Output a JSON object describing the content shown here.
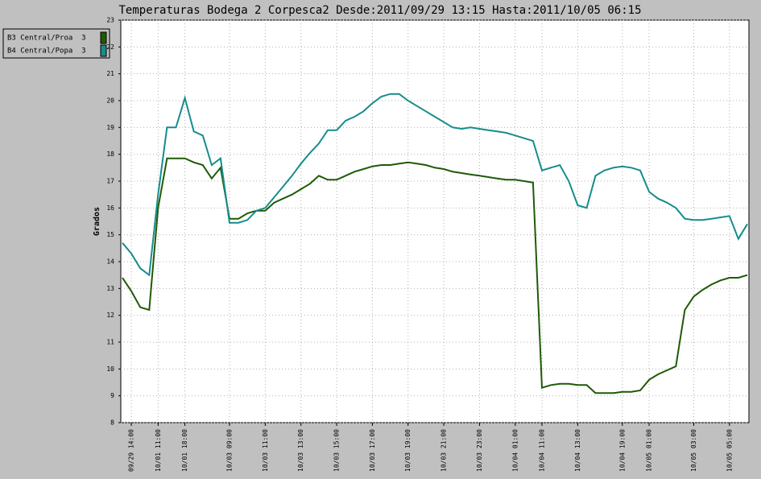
{
  "chart_data": {
    "type": "line",
    "title": "Temperaturas Bodega 2 Corpesca2 Desde:2011/09/29 13:15 Hasta:2011/10/05 06:15",
    "y_label": "Grados",
    "categories": [
      null,
      "09/29 14:00",
      null,
      null,
      "10/01 11:00",
      null,
      null,
      "10/01 18:00",
      null,
      null,
      null,
      null,
      "10/03 09:00",
      null,
      null,
      null,
      "10/03 11:00",
      null,
      null,
      null,
      "10/03 13:00",
      null,
      null,
      null,
      "10/03 15:00",
      null,
      null,
      null,
      "10/03 17:00",
      null,
      null,
      null,
      "10/03 19:00",
      null,
      null,
      null,
      "10/03 21:00",
      null,
      null,
      null,
      "10/03 23:00",
      null,
      null,
      null,
      "10/04 01:00",
      null,
      null,
      "10/04 11:00",
      null,
      null,
      null,
      "10/04 13:00",
      null,
      null,
      null,
      null,
      "10/04 19:00",
      null,
      null,
      "10/05 01:00",
      null,
      null,
      null,
      null,
      "10/05 03:00",
      null,
      null,
      null,
      "10/05 05:00",
      null,
      null
    ],
    "series": [
      {
        "name": "B3 Central/Proa  3",
        "color": "#1f5a05",
        "values": [
          13.4,
          12.9,
          12.3,
          12.2,
          16.0,
          17.85,
          17.85,
          17.85,
          17.7,
          17.6,
          17.1,
          17.5,
          15.6,
          15.6,
          15.8,
          15.9,
          15.9,
          16.2,
          16.35,
          16.5,
          16.7,
          16.9,
          17.2,
          17.05,
          17.05,
          17.2,
          17.35,
          17.45,
          17.55,
          17.6,
          17.6,
          17.65,
          17.7,
          17.65,
          17.6,
          17.5,
          17.45,
          17.35,
          17.3,
          17.25,
          17.2,
          17.15,
          17.1,
          17.05,
          17.05,
          17.0,
          16.95,
          9.3,
          9.4,
          9.45,
          9.45,
          9.4,
          9.4,
          9.1,
          9.1,
          9.1,
          9.15,
          9.15,
          9.2,
          9.6,
          9.8,
          9.95,
          10.1,
          12.2,
          12.7,
          12.95,
          13.15,
          13.3,
          13.4,
          13.4,
          13.5
        ]
      },
      {
        "name": "B4 Central/Popa  3",
        "color": "#168c8c",
        "values": [
          14.7,
          14.3,
          13.75,
          13.5,
          16.5,
          19.0,
          19.0,
          20.1,
          18.85,
          18.7,
          17.6,
          17.85,
          15.45,
          15.45,
          15.55,
          15.9,
          16.0,
          16.4,
          16.8,
          17.2,
          17.65,
          18.05,
          18.4,
          18.9,
          18.9,
          19.25,
          19.4,
          19.6,
          19.9,
          20.15,
          20.25,
          20.25,
          20.0,
          19.8,
          19.6,
          19.4,
          19.2,
          19.0,
          18.95,
          19.0,
          18.95,
          18.9,
          18.85,
          18.8,
          18.7,
          18.6,
          18.5,
          17.4,
          17.5,
          17.6,
          17.0,
          16.1,
          16.0,
          17.2,
          17.4,
          17.5,
          17.55,
          17.5,
          17.4,
          16.6,
          16.35,
          16.2,
          16.0,
          15.6,
          15.55,
          15.55,
          15.6,
          15.65,
          15.7,
          14.85,
          15.4
        ]
      }
    ],
    "ylim": [
      8,
      23
    ],
    "yticks": [
      8,
      9,
      10,
      11,
      12,
      13,
      14,
      15,
      16,
      17,
      18,
      19,
      20,
      21,
      22,
      23
    ],
    "grid": true
  }
}
